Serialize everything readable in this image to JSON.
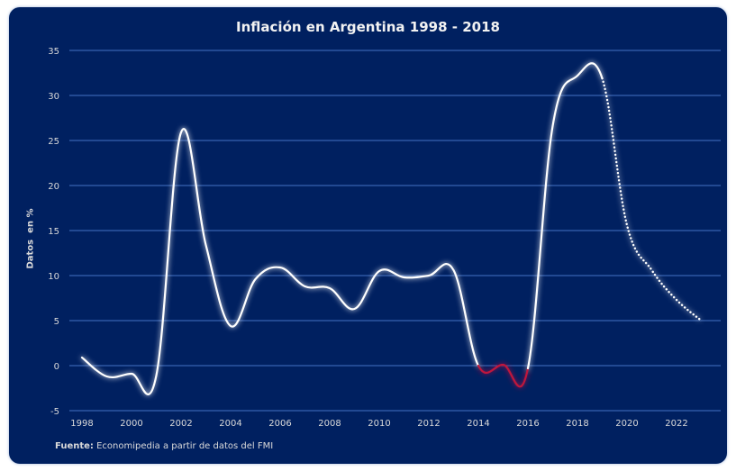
{
  "chart_data": {
    "type": "line",
    "title": "Inflación en Argentina 1998 - 2018",
    "xlabel": "",
    "ylabel": "Datos  en %",
    "ylim": [
      -5,
      35
    ],
    "xlim": [
      1998,
      2023
    ],
    "yticks": [
      -5,
      0,
      5,
      10,
      15,
      20,
      25,
      30,
      35
    ],
    "xticks": [
      1998,
      2000,
      2002,
      2004,
      2006,
      2008,
      2010,
      2012,
      2014,
      2016,
      2018,
      2020,
      2022
    ],
    "grid": true,
    "x": [
      1998,
      1999,
      2000,
      2001,
      2002,
      2003,
      2004,
      2005,
      2006,
      2007,
      2008,
      2009,
      2010,
      2011,
      2012,
      2013,
      2014,
      2015,
      2016,
      2017,
      2018,
      2019,
      2020,
      2021,
      2022,
      2023
    ],
    "y": [
      0.9,
      -1.2,
      -0.9,
      -1.1,
      25.9,
      13.4,
      4.4,
      9.6,
      10.9,
      8.8,
      8.6,
      6.3,
      10.5,
      9.8,
      10.0,
      10.6,
      0.0,
      0.1,
      -0.3,
      26.6,
      32.2,
      31.9,
      15.6,
      10.6,
      7.3,
      5.0
    ],
    "segments": [
      {
        "from": 1998,
        "to": 2014,
        "style": "solid",
        "color": "#ffffff"
      },
      {
        "from": 2014,
        "to": 2016,
        "style": "solid",
        "color": "#c0143c"
      },
      {
        "from": 2016,
        "to": 2019,
        "style": "solid",
        "color": "#ffffff"
      },
      {
        "from": 2019,
        "to": 2023,
        "style": "dotted",
        "color": "#ffffff"
      }
    ],
    "background": "#002060",
    "gridcolor": "#4472c4"
  },
  "source": {
    "label": "Fuente:",
    "text": " Economipedia a partir de datos del FMI"
  }
}
